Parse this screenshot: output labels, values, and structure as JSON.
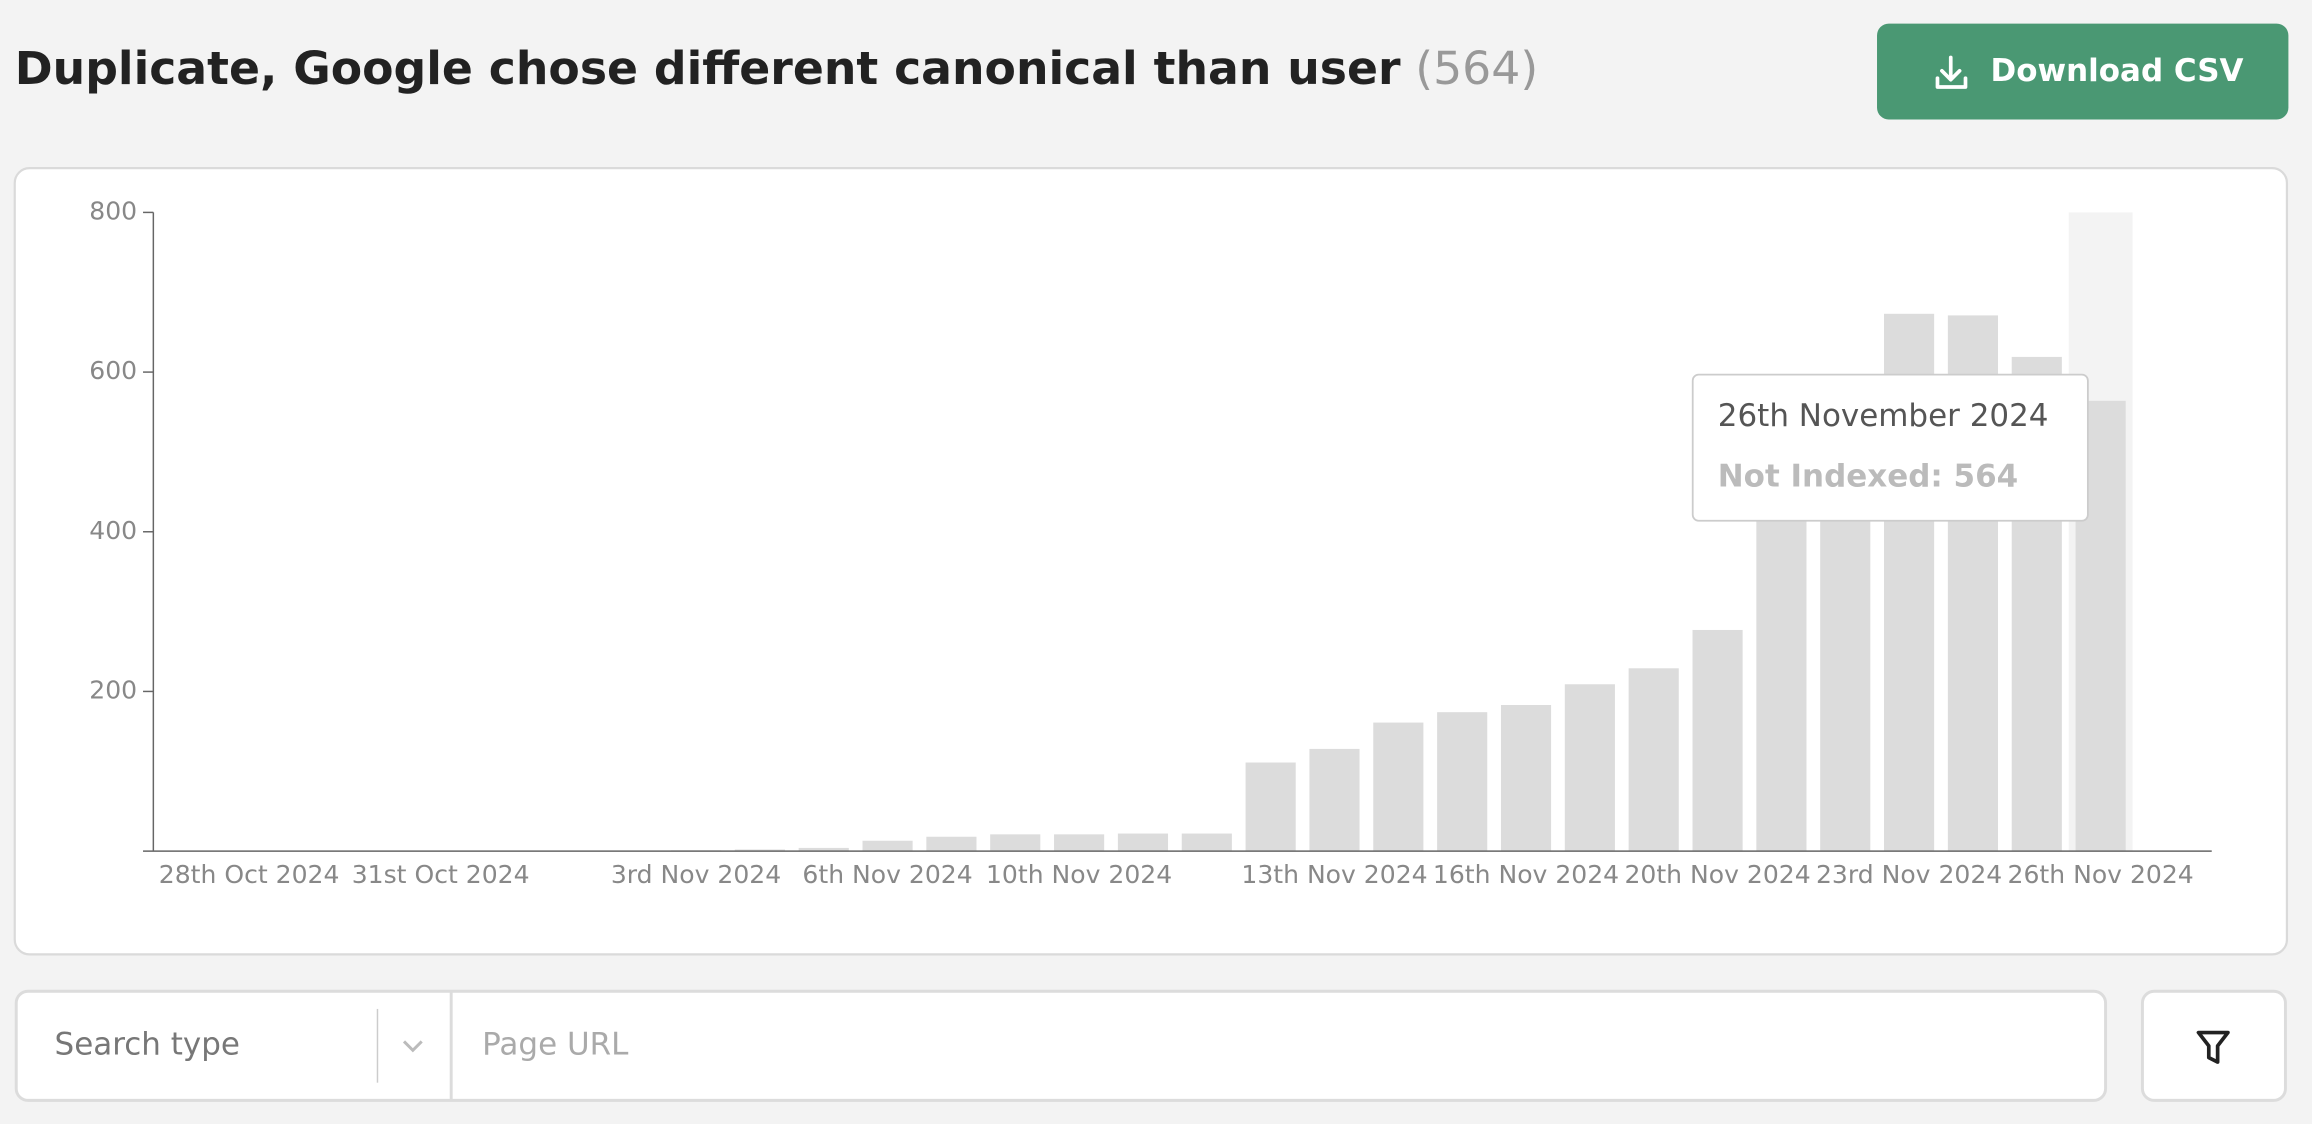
{
  "header": {
    "title": "Duplicate, Google chose different canonical than user",
    "count": "(564)",
    "button": "Download CSV"
  },
  "chart_data": {
    "type": "bar",
    "categories": [
      null,
      "28th Oct 2024",
      null,
      null,
      "31st Oct 2024",
      null,
      null,
      null,
      "3rd Nov 2024",
      null,
      null,
      "6th Nov 2024",
      null,
      null,
      "10th Nov 2024",
      null,
      null,
      null,
      "13th Nov 2024",
      null,
      null,
      "16th Nov 2024",
      null,
      null,
      "20th Nov 2024",
      null,
      null,
      "23rd Nov 2024",
      null,
      null,
      "26th Nov 2024"
    ],
    "series": [
      {
        "name": "Not Indexed",
        "color": "#dcdcdc",
        "values": [
          0,
          0,
          0,
          0,
          0,
          0,
          0,
          0,
          1,
          2,
          4,
          13,
          18,
          21,
          21,
          22,
          22,
          111,
          128,
          161,
          174,
          183,
          209,
          229,
          277,
          470,
          560,
          673,
          671,
          619,
          564
        ]
      }
    ],
    "ylim": [
      0,
      800
    ],
    "yticks": [
      200,
      400,
      600,
      800
    ],
    "highlight_color": "#f3f3f3",
    "tooltip": {
      "title": "26th November 2024",
      "text": "Not Indexed: 564"
    }
  },
  "filters": {
    "search_type": "Search type",
    "url_placeholder": "Page URL"
  }
}
